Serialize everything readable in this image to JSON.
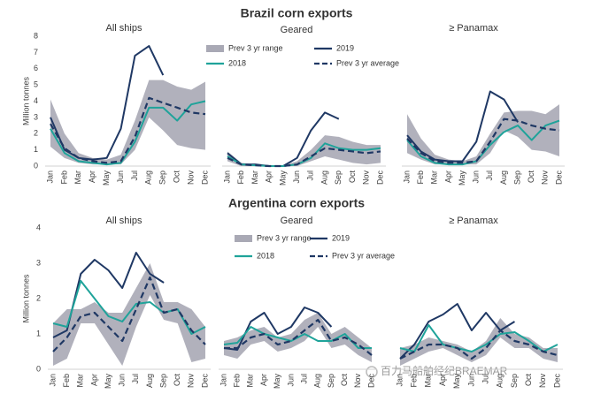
{
  "headings": [
    "Brazil corn exports",
    "Argentina corn exports"
  ],
  "watermark": "百力马船舶经纪BRAEMAR",
  "chart_data": [
    {
      "type": "line",
      "title": "All ships",
      "ylabel": "Million tonnes",
      "categories": [
        "Jan",
        "Feb",
        "Mar",
        "Apr",
        "May",
        "Jun",
        "Jul",
        "Aug",
        "Sep",
        "Oct",
        "Nov",
        "Dec"
      ],
      "ylim": [
        0,
        8
      ],
      "yticks": [
        0,
        1,
        2,
        3,
        4,
        5,
        6,
        7,
        8
      ],
      "legend": false,
      "series": [
        {
          "name": "Prev 3 yr range",
          "color": "#a9a9b5",
          "low": [
            1.2,
            0.5,
            0.2,
            0.1,
            0.1,
            0.1,
            1.0,
            3.0,
            2.2,
            1.3,
            1.1,
            1.0
          ],
          "high": [
            4.1,
            2.0,
            0.8,
            0.5,
            0.4,
            0.7,
            2.8,
            5.3,
            5.3,
            4.9,
            4.7,
            5.2
          ]
        },
        {
          "name": "2019",
          "color": "#1f3864",
          "values": [
            3.0,
            1.0,
            0.5,
            0.4,
            0.5,
            2.3,
            6.8,
            7.4,
            5.6,
            null,
            null,
            null
          ]
        },
        {
          "name": "2018",
          "color": "#1fa39a",
          "values": [
            2.3,
            0.8,
            0.3,
            0.2,
            0.1,
            0.2,
            1.5,
            3.6,
            3.6,
            2.8,
            3.8,
            4.0
          ]
        },
        {
          "name": "Prev 3 yr average",
          "color": "#1f3864",
          "dash": true,
          "values": [
            2.6,
            1.1,
            0.5,
            0.3,
            0.2,
            0.3,
            1.8,
            4.2,
            3.9,
            3.6,
            3.3,
            3.2
          ]
        }
      ]
    },
    {
      "type": "line",
      "title": "Geared",
      "categories": [
        "Jan",
        "Feb",
        "Mar",
        "Apr",
        "May",
        "Jun",
        "Jul",
        "Aug",
        "Sep",
        "Oct",
        "Nov",
        "Dec"
      ],
      "ylim": [
        0,
        8
      ],
      "legend": true,
      "series": [
        {
          "name": "Prev 3 yr range",
          "color": "#a9a9b5",
          "low": [
            0.3,
            0,
            0,
            0,
            0,
            0,
            0.3,
            0.6,
            0.4,
            0.2,
            0.1,
            0.2
          ],
          "high": [
            0.9,
            0.2,
            0.1,
            0.05,
            0.05,
            0.3,
            1.0,
            1.9,
            1.8,
            1.5,
            1.3,
            1.3
          ]
        },
        {
          "name": "2019",
          "color": "#1f3864",
          "values": [
            0.8,
            0.1,
            0.1,
            0,
            0,
            0.5,
            2.2,
            3.3,
            2.9,
            null,
            null,
            null
          ]
        },
        {
          "name": "2018",
          "color": "#1fa39a",
          "values": [
            0.6,
            0.1,
            0.05,
            0,
            0,
            0.1,
            0.5,
            1.4,
            1.1,
            1.0,
            1.0,
            1.1
          ]
        },
        {
          "name": "Prev 3 yr average",
          "color": "#1f3864",
          "dash": true,
          "values": [
            0.5,
            0.1,
            0.05,
            0,
            0,
            0.1,
            0.6,
            1.1,
            1.0,
            0.9,
            0.8,
            0.9
          ]
        }
      ]
    },
    {
      "type": "line",
      "title": "≥ Panamax",
      "categories": [
        "Jan",
        "Feb",
        "Mar",
        "Apr",
        "May",
        "Jun",
        "Jul",
        "Aug",
        "Sep",
        "Oct",
        "Nov",
        "Dec"
      ],
      "ylim": [
        0,
        8
      ],
      "legend": false,
      "series": [
        {
          "name": "Prev 3 yr range",
          "color": "#a9a9b5",
          "low": [
            0.8,
            0.4,
            0.1,
            0.1,
            0.1,
            0.1,
            0.8,
            2.2,
            1.8,
            1.0,
            0.9,
            0.6
          ],
          "high": [
            3.2,
            1.7,
            0.7,
            0.4,
            0.3,
            0.6,
            2.0,
            3.3,
            3.4,
            3.4,
            3.2,
            3.8
          ]
        },
        {
          "name": "2019",
          "color": "#1f3864",
          "values": [
            1.9,
            0.9,
            0.4,
            0.3,
            0.3,
            1.5,
            4.6,
            4.1,
            2.7,
            null,
            null,
            null
          ]
        },
        {
          "name": "2018",
          "color": "#1fa39a",
          "values": [
            1.6,
            0.6,
            0.2,
            0.1,
            0.1,
            0.3,
            1.3,
            2.1,
            2.5,
            1.6,
            2.5,
            2.8
          ]
        },
        {
          "name": "Prev 3 yr average",
          "color": "#1f3864",
          "dash": true,
          "values": [
            1.7,
            0.8,
            0.3,
            0.2,
            0.2,
            0.3,
            1.5,
            2.9,
            2.8,
            2.5,
            2.3,
            2.2
          ]
        }
      ]
    },
    {
      "type": "line",
      "title": "All ships",
      "ylabel": "Million tonnes",
      "categories": [
        "Jan",
        "Feb",
        "Mar",
        "Apr",
        "May",
        "Jun",
        "Jul",
        "Aug",
        "Sep",
        "Oct",
        "Nov",
        "Dec"
      ],
      "ylim": [
        0,
        4
      ],
      "yticks": [
        0,
        1,
        2,
        3,
        4
      ],
      "legend": false,
      "series": [
        {
          "name": "Prev 3 yr range",
          "color": "#a9a9b5",
          "low": [
            0.1,
            0.3,
            1.3,
            1.3,
            0.7,
            0.1,
            1.2,
            2.1,
            1.4,
            1.3,
            0.2,
            0.3
          ],
          "high": [
            1.3,
            1.7,
            1.7,
            1.9,
            1.6,
            1.6,
            2.3,
            3.0,
            1.9,
            1.9,
            1.7,
            1.2
          ]
        },
        {
          "name": "2019",
          "color": "#1f3864",
          "values": [
            0.9,
            1.1,
            2.7,
            3.1,
            2.8,
            2.3,
            3.3,
            2.7,
            2.45,
            null,
            null,
            null
          ]
        },
        {
          "name": "2018",
          "color": "#1fa39a",
          "values": [
            1.3,
            1.2,
            2.5,
            2.0,
            1.5,
            1.35,
            1.85,
            1.9,
            1.6,
            1.7,
            1.0,
            1.2
          ]
        },
        {
          "name": "Prev 3 yr average",
          "color": "#1f3864",
          "dash": true,
          "values": [
            0.5,
            0.9,
            1.5,
            1.6,
            1.2,
            0.8,
            1.7,
            2.6,
            1.6,
            1.7,
            1.1,
            0.7
          ]
        }
      ]
    },
    {
      "type": "line",
      "title": "Geared",
      "categories": [
        "Jan",
        "Feb",
        "Mar",
        "Apr",
        "May",
        "Jun",
        "Jul",
        "Aug",
        "Sep",
        "Oct",
        "Nov",
        "Dec"
      ],
      "ylim": [
        0,
        4
      ],
      "legend": true,
      "series": [
        {
          "name": "Prev 3 yr range",
          "color": "#a9a9b5",
          "low": [
            0.4,
            0.3,
            0.7,
            0.8,
            0.5,
            0.6,
            0.8,
            1.2,
            0.6,
            0.7,
            0.4,
            0.2
          ],
          "high": [
            0.8,
            0.9,
            1.1,
            1.2,
            0.9,
            1.0,
            1.4,
            1.6,
            1.0,
            1.2,
            0.9,
            0.6
          ]
        },
        {
          "name": "2019",
          "color": "#1f3864",
          "values": [
            0.6,
            0.55,
            1.35,
            1.6,
            1.0,
            1.2,
            1.75,
            1.6,
            1.2,
            null,
            null,
            null
          ]
        },
        {
          "name": "2018",
          "color": "#1fa39a",
          "values": [
            0.7,
            0.75,
            1.2,
            1.0,
            0.9,
            0.8,
            1.0,
            0.8,
            0.8,
            1.0,
            0.6,
            0.6
          ]
        },
        {
          "name": "Prev 3 yr average",
          "color": "#1f3864",
          "dash": true,
          "values": [
            0.6,
            0.6,
            0.9,
            1.0,
            0.7,
            0.8,
            1.1,
            1.4,
            0.8,
            0.9,
            0.7,
            0.4
          ]
        }
      ]
    },
    {
      "type": "line",
      "title": "≥ Panamax",
      "categories": [
        "Jan",
        "Feb",
        "Mar",
        "Apr",
        "May",
        "Jun",
        "Jul",
        "Aug",
        "Sep",
        "Oct",
        "Nov",
        "Dec"
      ],
      "ylim": [
        0,
        4
      ],
      "legend": false,
      "series": [
        {
          "name": "Prev 3 yr range",
          "color": "#a9a9b5",
          "low": [
            0.1,
            0.3,
            0.5,
            0.6,
            0.4,
            0.2,
            0.4,
            0.9,
            0.6,
            0.6,
            0.3,
            0.2
          ],
          "high": [
            0.6,
            0.7,
            0.9,
            0.8,
            0.7,
            0.5,
            0.8,
            1.45,
            1.0,
            0.9,
            0.6,
            0.6
          ]
        },
        {
          "name": "2019",
          "color": "#1f3864",
          "values": [
            0.3,
            0.7,
            1.35,
            1.55,
            1.85,
            1.1,
            1.6,
            1.1,
            1.35,
            null,
            null,
            null
          ]
        },
        {
          "name": "2018",
          "color": "#1fa39a",
          "values": [
            0.6,
            0.5,
            1.25,
            0.7,
            0.6,
            0.5,
            0.7,
            1.0,
            1.05,
            0.8,
            0.5,
            0.7
          ]
        },
        {
          "name": "Prev 3 yr average",
          "color": "#1f3864",
          "dash": true,
          "values": [
            0.3,
            0.5,
            0.7,
            0.7,
            0.6,
            0.3,
            0.6,
            1.1,
            0.8,
            0.7,
            0.5,
            0.4
          ]
        }
      ]
    }
  ]
}
